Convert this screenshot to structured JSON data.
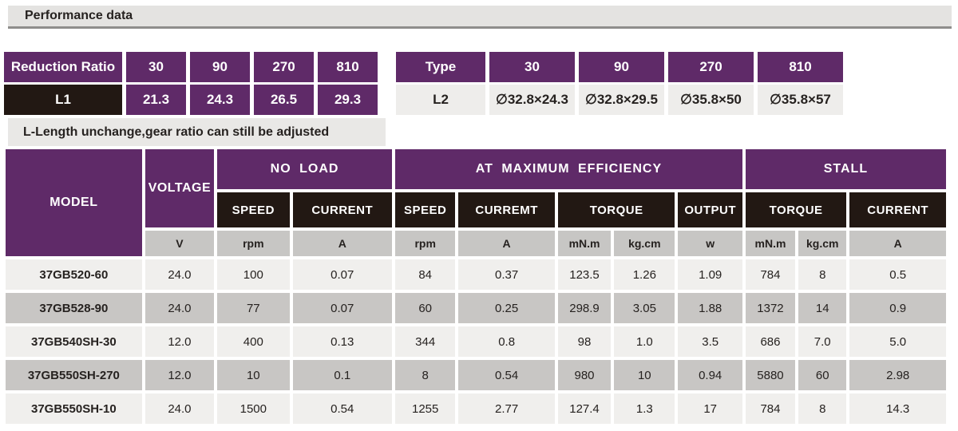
{
  "page_title": "Performance data",
  "colors": {
    "purple": "#5f2a68",
    "black_cell": "#221813",
    "unit_gray": "#c7c6c4",
    "row_light": "#f0efed",
    "row_dark": "#c8c6c4",
    "title_bar_bg": "#e4e3e1",
    "title_bar_border": "#8f8e8c",
    "note_bg": "#e9e8e6"
  },
  "reduction_table": {
    "header": [
      "Reduction Ratio",
      "30",
      "90",
      "270",
      "810"
    ],
    "row_label": "L1",
    "row_values": [
      "21.3",
      "24.3",
      "26.5",
      "29.3"
    ]
  },
  "note": "L-Length unchange,gear ratio can still be adjusted",
  "type_table": {
    "header": [
      "Type",
      "30",
      "90",
      "270",
      "810"
    ],
    "row_label": "L2",
    "row_values": [
      "∅32.8×24.3",
      "∅32.8×29.5",
      "∅35.8×50",
      "∅35.8×57"
    ]
  },
  "main_table": {
    "col_headers": {
      "model": "MODEL",
      "voltage": "VOLTAGE",
      "groups": [
        "NO LOAD",
        "AT MAXIMUM EFFICIENCY",
        "STALL"
      ],
      "sub": [
        "SPEED",
        "CURRENT",
        "SPEED",
        "CURREMT",
        "TORQUE",
        "OUTPUT",
        "TORQUE",
        "CURRENT"
      ],
      "units": [
        "V",
        "rpm",
        "A",
        "rpm",
        "A",
        "mN.m",
        "kg.cm",
        "w",
        "mN.m",
        "kg.cm",
        "A"
      ]
    },
    "rows": [
      {
        "model": "37GB520-60",
        "values": [
          "24.0",
          "100",
          "0.07",
          "84",
          "0.37",
          "123.5",
          "1.26",
          "1.09",
          "784",
          "8",
          "0.5"
        ]
      },
      {
        "model": "37GB528-90",
        "values": [
          "24.0",
          "77",
          "0.07",
          "60",
          "0.25",
          "298.9",
          "3.05",
          "1.88",
          "1372",
          "14",
          "0.9"
        ]
      },
      {
        "model": "37GB540SH-30",
        "values": [
          "12.0",
          "400",
          "0.13",
          "344",
          "0.8",
          "98",
          "1.0",
          "3.5",
          "686",
          "7.0",
          "5.0"
        ]
      },
      {
        "model": "37GB550SH-270",
        "values": [
          "12.0",
          "10",
          "0.1",
          "8",
          "0.54",
          "980",
          "10",
          "0.94",
          "5880",
          "60",
          "2.98"
        ]
      },
      {
        "model": "37GB550SH-10",
        "values": [
          "24.0",
          "1500",
          "0.54",
          "1255",
          "2.77",
          "127.4",
          "1.3",
          "17",
          "784",
          "8",
          "14.3"
        ]
      }
    ]
  }
}
